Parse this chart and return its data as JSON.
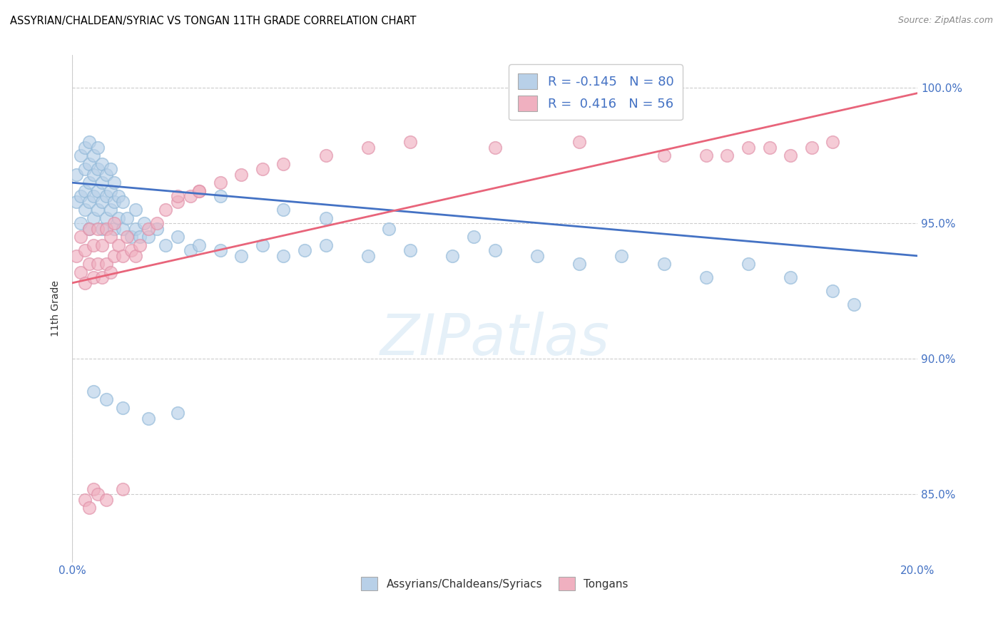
{
  "title": "ASSYRIAN/CHALDEAN/SYRIAC VS TONGAN 11TH GRADE CORRELATION CHART",
  "source": "Source: ZipAtlas.com",
  "ylabel": "11th Grade",
  "yticks": [
    0.85,
    0.9,
    0.95,
    1.0
  ],
  "ytick_labels": [
    "85.0%",
    "90.0%",
    "95.0%",
    "100.0%"
  ],
  "xmin": 0.0,
  "xmax": 0.2,
  "ymin": 0.825,
  "ymax": 1.012,
  "watermark": "ZIPatlas",
  "legend_R_blue": "-0.145",
  "legend_N_blue": "80",
  "legend_R_pink": "0.416",
  "legend_N_pink": "56",
  "blue_fill": "#b8d0e8",
  "pink_fill": "#f0b0c0",
  "blue_edge": "#90b8d8",
  "pink_edge": "#e090a8",
  "line_blue": "#4472c4",
  "line_pink": "#e8647a",
  "blue_line_x": [
    0.0,
    0.2
  ],
  "blue_line_y": [
    0.965,
    0.938
  ],
  "pink_line_x": [
    0.0,
    0.2
  ],
  "pink_line_y": [
    0.928,
    0.998
  ],
  "blue_scatter_x": [
    0.001,
    0.001,
    0.002,
    0.002,
    0.002,
    0.003,
    0.003,
    0.003,
    0.003,
    0.004,
    0.004,
    0.004,
    0.004,
    0.004,
    0.005,
    0.005,
    0.005,
    0.005,
    0.006,
    0.006,
    0.006,
    0.006,
    0.007,
    0.007,
    0.007,
    0.007,
    0.008,
    0.008,
    0.008,
    0.009,
    0.009,
    0.009,
    0.01,
    0.01,
    0.01,
    0.011,
    0.011,
    0.012,
    0.012,
    0.013,
    0.014,
    0.015,
    0.015,
    0.016,
    0.017,
    0.018,
    0.02,
    0.022,
    0.025,
    0.028,
    0.03,
    0.035,
    0.04,
    0.045,
    0.05,
    0.055,
    0.06,
    0.07,
    0.08,
    0.09,
    0.1,
    0.11,
    0.12,
    0.13,
    0.14,
    0.15,
    0.16,
    0.17,
    0.18,
    0.185,
    0.06,
    0.075,
    0.095,
    0.05,
    0.035,
    0.025,
    0.018,
    0.012,
    0.008,
    0.005
  ],
  "blue_scatter_y": [
    0.958,
    0.968,
    0.95,
    0.96,
    0.975,
    0.955,
    0.962,
    0.97,
    0.978,
    0.948,
    0.958,
    0.965,
    0.972,
    0.98,
    0.952,
    0.96,
    0.968,
    0.975,
    0.955,
    0.962,
    0.97,
    0.978,
    0.948,
    0.958,
    0.965,
    0.972,
    0.952,
    0.96,
    0.968,
    0.955,
    0.962,
    0.97,
    0.948,
    0.958,
    0.965,
    0.952,
    0.96,
    0.948,
    0.958,
    0.952,
    0.945,
    0.948,
    0.955,
    0.945,
    0.95,
    0.945,
    0.948,
    0.942,
    0.945,
    0.94,
    0.942,
    0.94,
    0.938,
    0.942,
    0.938,
    0.94,
    0.942,
    0.938,
    0.94,
    0.938,
    0.94,
    0.938,
    0.935,
    0.938,
    0.935,
    0.93,
    0.935,
    0.93,
    0.925,
    0.92,
    0.952,
    0.948,
    0.945,
    0.955,
    0.96,
    0.88,
    0.878,
    0.882,
    0.885,
    0.888
  ],
  "pink_scatter_x": [
    0.001,
    0.002,
    0.002,
    0.003,
    0.003,
    0.004,
    0.004,
    0.005,
    0.005,
    0.006,
    0.006,
    0.007,
    0.007,
    0.008,
    0.008,
    0.009,
    0.009,
    0.01,
    0.01,
    0.011,
    0.012,
    0.013,
    0.014,
    0.015,
    0.016,
    0.018,
    0.02,
    0.022,
    0.025,
    0.028,
    0.03,
    0.035,
    0.04,
    0.045,
    0.05,
    0.06,
    0.07,
    0.08,
    0.1,
    0.12,
    0.14,
    0.15,
    0.16,
    0.17,
    0.175,
    0.18,
    0.155,
    0.165,
    0.025,
    0.03,
    0.003,
    0.004,
    0.005,
    0.006,
    0.008,
    0.012
  ],
  "pink_scatter_y": [
    0.938,
    0.932,
    0.945,
    0.928,
    0.94,
    0.935,
    0.948,
    0.93,
    0.942,
    0.935,
    0.948,
    0.93,
    0.942,
    0.935,
    0.948,
    0.932,
    0.945,
    0.938,
    0.95,
    0.942,
    0.938,
    0.945,
    0.94,
    0.938,
    0.942,
    0.948,
    0.95,
    0.955,
    0.958,
    0.96,
    0.962,
    0.965,
    0.968,
    0.97,
    0.972,
    0.975,
    0.978,
    0.98,
    0.978,
    0.98,
    0.975,
    0.975,
    0.978,
    0.975,
    0.978,
    0.98,
    0.975,
    0.978,
    0.96,
    0.962,
    0.848,
    0.845,
    0.852,
    0.85,
    0.848,
    0.852
  ]
}
